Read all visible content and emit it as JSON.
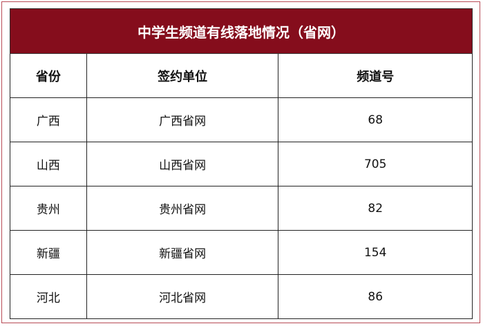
{
  "title": "中学生频道有线落地情况（省网）",
  "colors": {
    "header_bg": "#850d1c",
    "header_text": "#ffffff"
  },
  "columns": [
    "省份",
    "签约单位",
    "频道号"
  ],
  "rows": [
    [
      "广西",
      "广西省网",
      "68"
    ],
    [
      "山西",
      "山西省网",
      "705"
    ],
    [
      "贵州",
      "贵州省网",
      "82"
    ],
    [
      "新疆",
      "新疆省网",
      "154"
    ],
    [
      "河北",
      "河北省网",
      "86"
    ]
  ]
}
